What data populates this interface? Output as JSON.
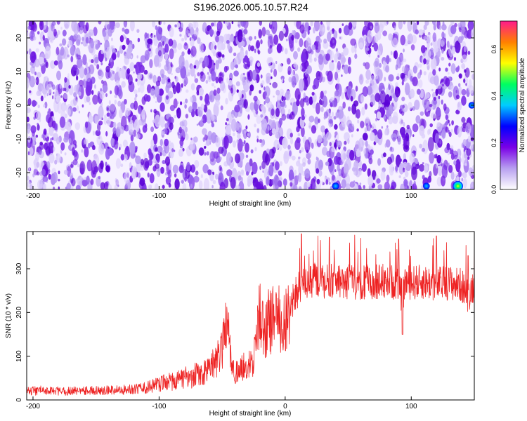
{
  "title": "S196.2026.005.10.57.R24",
  "chart_data": [
    {
      "type": "heatmap",
      "xlabel": "Height of straight line (km)",
      "ylabel": "Frequency (Hz)",
      "x_ticks": [
        "-200",
        "-100",
        "0",
        "100"
      ],
      "x_tick_values": [
        -200,
        -100,
        0,
        100
      ],
      "y_ticks": [
        "-20",
        "-10",
        "0",
        "10",
        "20"
      ],
      "y_tick_values": [
        -20,
        -10,
        0,
        10,
        20
      ],
      "xlim": [
        -205,
        150
      ],
      "ylim": [
        -25,
        25
      ],
      "colorbar": {
        "label": "Normalized spectral amplitude",
        "ticks": [
          "0.0",
          "0.2",
          "0.4",
          "0.6"
        ],
        "tick_values": [
          0.0,
          0.2,
          0.4,
          0.6
        ],
        "range": [
          0.0,
          0.72
        ],
        "colors": [
          "#ffffff",
          "#b8a0f0",
          "#7a00e6",
          "#0000ff",
          "#00ccff",
          "#00ff60",
          "#ffff00",
          "#ff8000",
          "#ff1a8c"
        ]
      },
      "hotspots": [
        {
          "x": 40,
          "y": -24,
          "value": 0.18
        },
        {
          "x": 112,
          "y": -24,
          "value": 0.14
        },
        {
          "x": 137,
          "y": -24,
          "value": 0.55
        },
        {
          "x": 148,
          "y": 0,
          "value": 0.12
        }
      ]
    },
    {
      "type": "line",
      "xlabel": "Height of straight line (km)",
      "ylabel": "SNR (10 * v/v)",
      "x_ticks": [
        "-200",
        "-100",
        "0",
        "100"
      ],
      "x_tick_values": [
        -200,
        -100,
        0,
        100
      ],
      "y_ticks": [
        "0",
        "100",
        "200",
        "300"
      ],
      "y_tick_values": [
        0,
        100,
        200,
        300
      ],
      "xlim": [
        -205,
        150
      ],
      "ylim": [
        0,
        385
      ],
      "color": "#ee2222",
      "series": [
        {
          "x": [
            -205,
            -190,
            -175,
            -160,
            -140,
            -120,
            -110,
            -100,
            -95,
            -90,
            -85,
            -80,
            -75,
            -70,
            -65,
            -60,
            -55,
            -50,
            -47,
            -45,
            -43,
            -40,
            -35,
            -30,
            -25,
            -22,
            -20,
            -18,
            -15,
            -12,
            -10,
            -8,
            -5,
            -2,
            0,
            3,
            6,
            10,
            13,
            15,
            20,
            25,
            30,
            40,
            50,
            60,
            70,
            80,
            90,
            93,
            95,
            100,
            110,
            120,
            130,
            140,
            145,
            150
          ],
          "y": [
            20,
            22,
            20,
            21,
            22,
            25,
            28,
            35,
            40,
            42,
            45,
            52,
            48,
            60,
            62,
            70,
            90,
            120,
            180,
            150,
            80,
            60,
            70,
            80,
            90,
            150,
            200,
            160,
            170,
            190,
            175,
            210,
            195,
            170,
            185,
            195,
            230,
            250,
            260,
            265,
            270,
            275,
            270,
            272,
            270,
            268,
            270,
            272,
            268,
            230,
            270,
            268,
            270,
            265,
            268,
            262,
            240,
            265
          ]
        }
      ],
      "spikes": [
        {
          "x": 13,
          "y": 380
        },
        {
          "x": 35,
          "y": 372
        },
        {
          "x": 60,
          "y": 370
        },
        {
          "x": 90,
          "y": 368
        },
        {
          "x": 120,
          "y": 375
        },
        {
          "x": 145,
          "y": 330
        }
      ]
    }
  ]
}
